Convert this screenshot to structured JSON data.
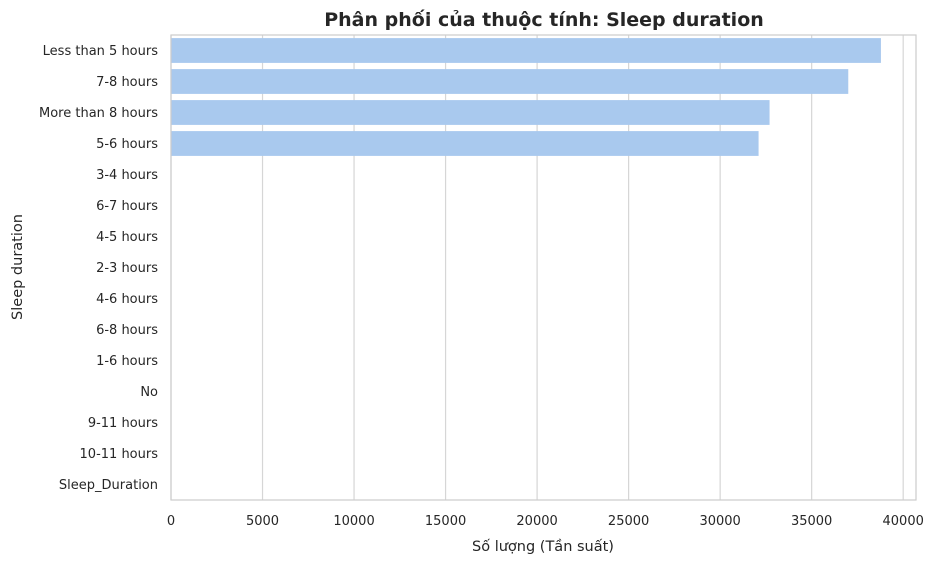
{
  "chart_data": {
    "type": "bar",
    "orientation": "horizontal",
    "title": "Phân phối của thuộc tính: Sleep duration",
    "xlabel": "Số lượng (Tần suất)",
    "ylabel": "Sleep duration",
    "categories": [
      "Less than 5 hours",
      "7-8 hours",
      "More than 8 hours",
      "5-6 hours",
      "3-4 hours",
      "6-7 hours",
      "4-5 hours",
      "2-3 hours",
      "4-6 hours",
      "6-8 hours",
      "1-6 hours",
      "No",
      "9-11 hours",
      "10-11 hours",
      "Sleep_Duration"
    ],
    "values": [
      38784,
      37000,
      32700,
      32100,
      10,
      8,
      7,
      6,
      5,
      4,
      4,
      3,
      2,
      1,
      1
    ],
    "xlim": [
      0,
      40700
    ],
    "xticks": [
      0,
      5000,
      10000,
      15000,
      20000,
      25000,
      30000,
      35000,
      40000
    ],
    "grid": "x",
    "bar_color": "#a9c9ee",
    "grid_color": "#d6d6d6",
    "frame_color": "#cccccc"
  }
}
